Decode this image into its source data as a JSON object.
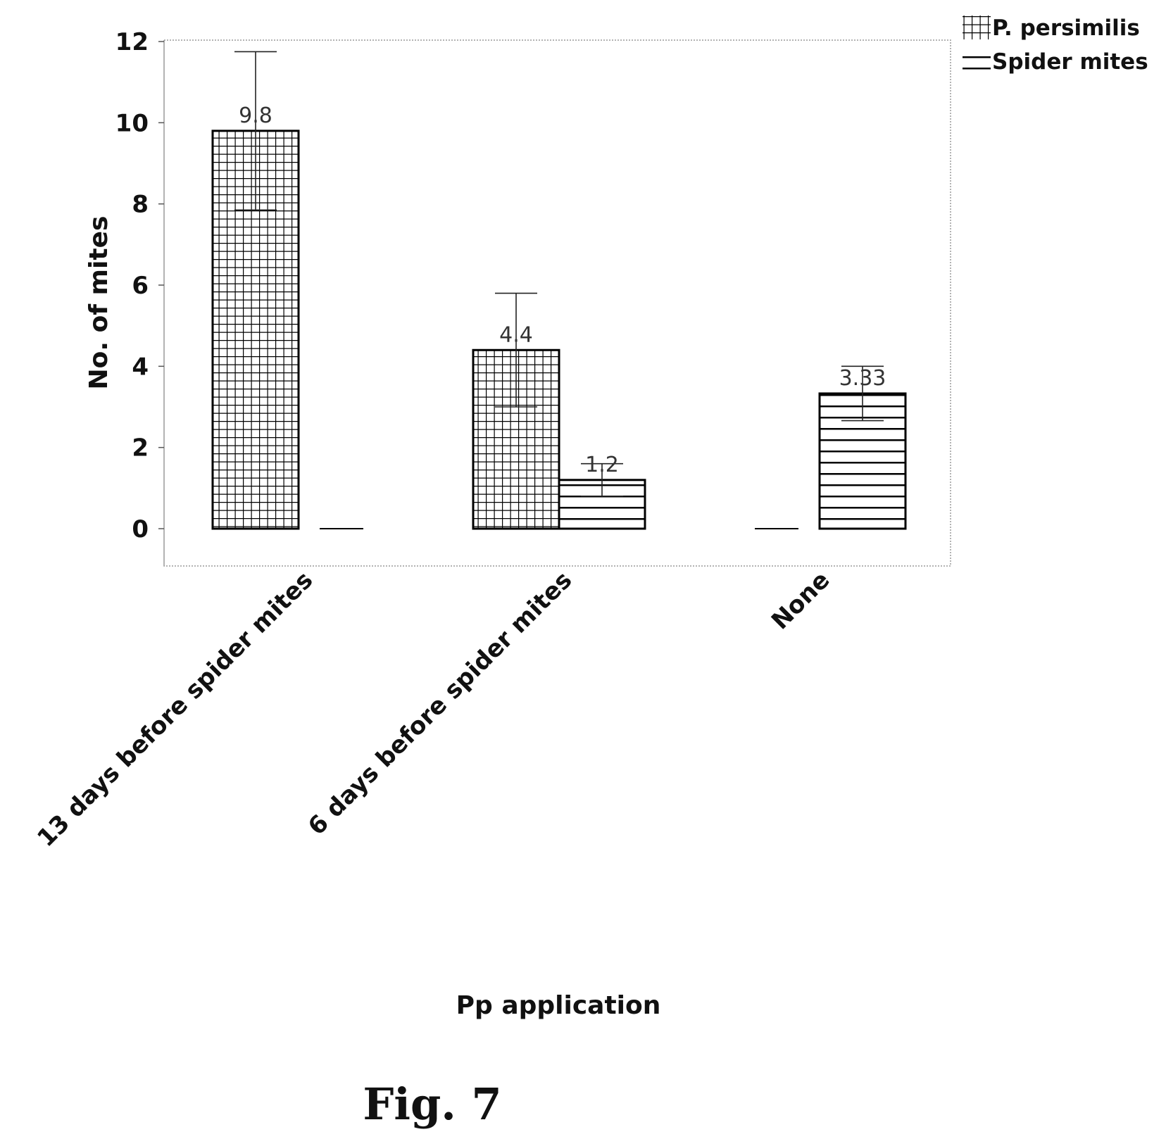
{
  "chart_data": {
    "type": "bar",
    "xlabel": "Pp application",
    "ylabel": "No. of mites",
    "ylim": [
      -0.9,
      12.3
    ],
    "yticks": [
      0,
      2,
      4,
      6,
      8,
      10,
      12
    ],
    "categories": [
      "13 days before spider mites",
      "6 days before spider mites",
      "None"
    ],
    "series": [
      {
        "name": "P. persimilis",
        "pattern": "grid",
        "values": [
          9.8,
          4.4,
          0
        ],
        "errors": [
          1.95,
          1.4,
          0
        ],
        "data_labels": [
          "9.8",
          "4.4",
          null
        ]
      },
      {
        "name": "Spider mites",
        "pattern": "horizontal-lines",
        "values": [
          0,
          1.2,
          3.33
        ],
        "errors": [
          0,
          0.4,
          0.67
        ],
        "data_labels": [
          null,
          "1.2",
          "3.33"
        ]
      }
    ],
    "legend_position": "top-right",
    "grid": false
  },
  "caption": "Fig. 7",
  "colors": {
    "bar_stroke": "#000000",
    "bar_fill": "#ffffff",
    "frame": "#999999"
  }
}
